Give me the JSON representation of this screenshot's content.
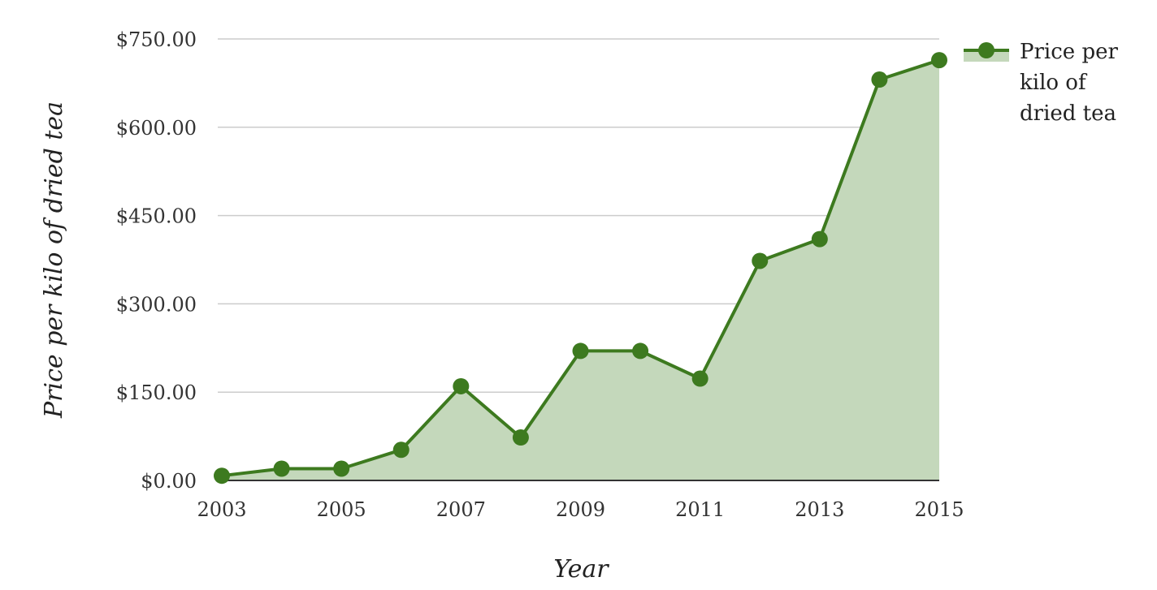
{
  "chart_data": {
    "type": "area",
    "x": [
      2003,
      2004,
      2005,
      2006,
      2007,
      2008,
      2009,
      2010,
      2011,
      2012,
      2013,
      2014,
      2015
    ],
    "x_tick_labels": [
      "2003",
      "2005",
      "2007",
      "2009",
      "2011",
      "2013",
      "2015"
    ],
    "x_tick_values": [
      2003,
      2005,
      2007,
      2009,
      2011,
      2013,
      2015
    ],
    "series": [
      {
        "name": "Price per kilo of dried tea",
        "values": [
          8,
          20,
          20,
          52,
          160,
          73,
          220,
          220,
          173,
          373,
          410,
          681,
          714
        ]
      }
    ],
    "xlabel": "Year",
    "ylabel": "Price per kilo of dried tea",
    "ylim": [
      0,
      750
    ],
    "xlim": [
      2003,
      2015
    ],
    "y_tick_labels": [
      "$0.00",
      "$150.00",
      "$300.00",
      "$450.00",
      "$600.00",
      "$750.00"
    ],
    "y_tick_values": [
      0,
      150,
      300,
      450,
      600,
      750
    ],
    "grid": true,
    "legend_position": "right",
    "colors": {
      "line": "#3d7a1f",
      "fill": "#c4d8bb"
    }
  }
}
